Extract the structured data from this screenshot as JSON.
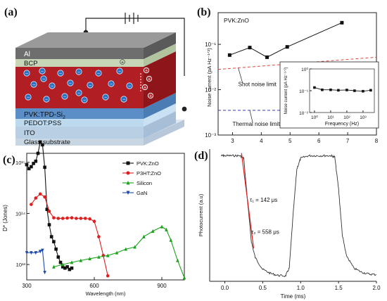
{
  "panels": {
    "a": {
      "label": "(a)",
      "layers": [
        "Al",
        "BCP",
        "PVK:TPD-Si",
        "PEDOT:PSS",
        "ITO",
        "Glass substrate"
      ],
      "layer_subscript": "2",
      "hole_symbol": "+",
      "electron_symbol": "−",
      "colors": {
        "al_top": "#8f8f8f",
        "al_front": "#6e6e6e",
        "bcp": "#c8d6b8",
        "pvk": "#b11e24",
        "tpd": "#5b8ec6",
        "pedot": "#bcd9ee",
        "ito": "#b9cfe3",
        "glass": "#dfe8f1"
      }
    },
    "b": {
      "label": "(b)"
    },
    "c": {
      "label": "(c)"
    },
    "d": {
      "label": "(d)"
    }
  },
  "chart_data": [
    {
      "panel": "b",
      "type": "line",
      "annotation": "PVK:ZnO",
      "xlabel": "",
      "ylabel": "Noise current (pA Hz⁻¹ᐟ²)",
      "xlim": [
        2.5,
        8
      ],
      "xticks": [
        "3",
        "4",
        "5",
        "6",
        "7",
        "8"
      ],
      "y_scale": "log",
      "ylim": [
        0.001,
        0.5
      ],
      "yticks": [
        "10⁻³",
        "10⁻²",
        "10⁻¹"
      ],
      "series": [
        {
          "x": [
            2.9,
            3.6,
            4.2,
            4.9,
            6.8
          ],
          "y": [
            0.058,
            0.085,
            0.052,
            0.088,
            0.3
          ],
          "color": "#111111",
          "marker": "square"
        }
      ],
      "reference_lines": [
        {
          "label": "Shot noise limit",
          "x": [
            2.5,
            8
          ],
          "y": [
            0.028,
            0.052
          ],
          "color": "#e0463c",
          "style": "dashed"
        },
        {
          "label": "Thermal noise limit",
          "x": [
            2.5,
            5.0
          ],
          "y": [
            0.0035,
            0.0035
          ],
          "color": "#3b3bb5",
          "style": "dashed"
        }
      ],
      "inset": {
        "xlabel": "Frequency (Hz)",
        "ylabel": "Noise current (pA Hz⁻¹ᐟ²)",
        "x_scale": "log",
        "y_scale": "log",
        "xticks": [
          "10⁰",
          "10¹",
          "10²",
          "10³"
        ],
        "yticks": [
          "10⁻²",
          "10⁻¹",
          "10⁰"
        ],
        "xlim": [
          0.5,
          5000
        ],
        "ylim": [
          0.01,
          1
        ],
        "x": [
          1,
          3,
          10,
          30,
          100,
          300,
          1000,
          3000
        ],
        "y": [
          0.14,
          0.11,
          0.11,
          0.105,
          0.108,
          0.1,
          0.095,
          0.105
        ]
      }
    },
    {
      "panel": "c",
      "type": "line",
      "xlabel": "Wavelength (nm)",
      "ylabel": "D* (Jones)",
      "xlim": [
        300,
        1000
      ],
      "xticks": [
        "300",
        "600",
        "900"
      ],
      "y_scale": "log",
      "ylim": [
        5000000000000,
        1500000000000000
      ],
      "yticks": [
        "10¹³",
        "10¹⁴",
        "10¹⁵"
      ],
      "legend_position": "top-right",
      "series": [
        {
          "name": "PVK:ZnO",
          "color": "#111111",
          "marker": "square",
          "x": [
            300,
            310,
            320,
            330,
            340,
            350,
            360,
            370,
            380,
            390,
            400,
            410,
            420,
            430,
            440,
            450,
            460,
            470,
            480,
            490,
            500
          ],
          "y": [
            900000000000000,
            750000000000000,
            820000000000000,
            950000000000000,
            1050000000000000,
            1500000000000000,
            2500000000000000,
            2200000000000000,
            800000000000000,
            120000000000000,
            60000000000000,
            35000000000000,
            28000000000000,
            20000000000000,
            14000000000000,
            11000000000000,
            9000000000000,
            8500000000000,
            9000000000000,
            8000000000000,
            8500000000000
          ]
        },
        {
          "name": "P3HT:ZnO",
          "color": "#e01e1e",
          "marker": "circle",
          "x": [
            320,
            340,
            360,
            380,
            400,
            420,
            440,
            460,
            480,
            500,
            520,
            540,
            560,
            580,
            600,
            620,
            640,
            660
          ],
          "y": [
            150000000000000,
            200000000000000,
            240000000000000,
            210000000000000,
            110000000000000,
            82000000000000,
            80000000000000,
            80000000000000,
            81000000000000,
            82000000000000,
            80000000000000,
            80000000000000,
            80000000000000,
            78000000000000,
            70000000000000,
            35000000000000,
            15000000000000,
            6000000000000
          ]
        },
        {
          "name": "Silicon",
          "color": "#19a319",
          "marker": "triangle-up",
          "x": [
            420,
            460,
            500,
            540,
            580,
            620,
            660,
            700,
            740,
            780,
            820,
            860,
            900,
            920,
            940,
            970,
            1000
          ],
          "y": [
            9000000000000,
            10000000000000,
            11000000000000,
            12000000000000,
            13000000000000,
            14000000000000,
            15000000000000,
            17000000000000,
            20000000000000,
            22000000000000,
            35000000000000,
            45000000000000,
            55000000000000,
            48000000000000,
            30000000000000,
            12000000000000,
            5500000000000
          ]
        },
        {
          "name": "GaN",
          "color": "#1f4aa8",
          "marker": "triangle-down",
          "x": [
            300,
            320,
            340,
            360,
            370,
            380
          ],
          "y": [
            17000000000000,
            17000000000000,
            17000000000000,
            18000000000000,
            19000000000000,
            7000000000000
          ]
        }
      ]
    },
    {
      "panel": "d",
      "type": "line",
      "xlabel": "Time (ms)",
      "ylabel": "Photocurrent (a.u)",
      "xlim": [
        -0.2,
        2.0
      ],
      "xticks": [
        "0.0",
        "0.5",
        "1.0",
        "1.5",
        "2.0"
      ],
      "ylim": [
        0,
        1
      ],
      "annotations": [
        "τ₁ = 142 μs",
        "τ₂ = 558 μs"
      ],
      "series": [
        {
          "color": "#333333",
          "x": [
            -0.05,
            0.0,
            0.1,
            0.2,
            0.25,
            0.3,
            0.35,
            0.4,
            0.5,
            0.6,
            0.7,
            0.8,
            0.85,
            0.9,
            0.95,
            1.0,
            1.1,
            1.2,
            1.3,
            1.4,
            1.45,
            1.5,
            1.55,
            1.6,
            1.7,
            1.8,
            1.9,
            2.0
          ],
          "y": [
            0.95,
            0.95,
            0.95,
            0.95,
            0.93,
            0.6,
            0.3,
            0.18,
            0.09,
            0.06,
            0.045,
            0.04,
            0.1,
            0.5,
            0.85,
            0.93,
            0.95,
            0.95,
            0.95,
            0.95,
            0.94,
            0.7,
            0.35,
            0.2,
            0.1,
            0.07,
            0.055,
            0.05
          ]
        }
      ],
      "fits": [
        {
          "color": "#e01e1e",
          "x": [
            0.22,
            0.38
          ],
          "y": [
            0.97,
            0.25
          ]
        }
      ]
    }
  ]
}
